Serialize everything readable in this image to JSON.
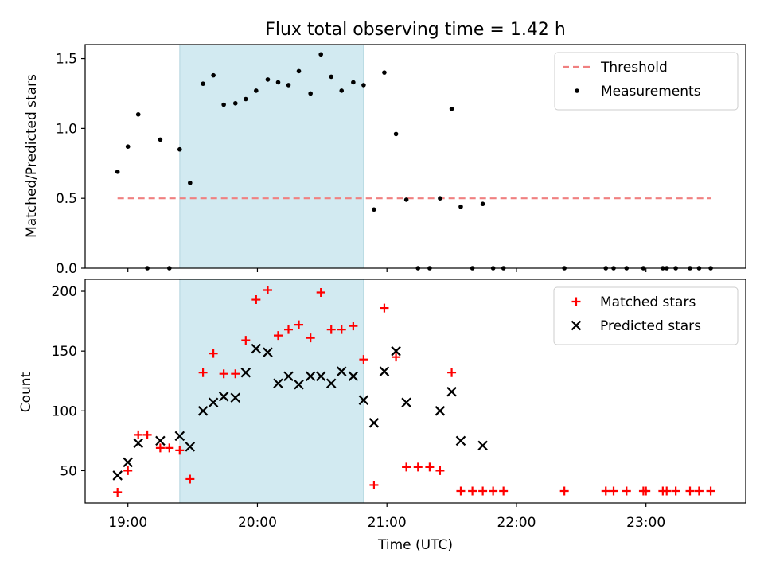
{
  "chart_data": [
    {
      "type": "scatter",
      "title": "Flux total observing time = 1.42 h",
      "ylabel": "Matched/Predicted stars",
      "ylim": [
        0,
        1.6
      ],
      "xlim": [
        18.67,
        23.77
      ],
      "yticks": [
        0,
        0.5,
        1.0,
        1.5
      ],
      "yticklabels": [
        "0.0",
        "0.5",
        "1.0",
        "1.5"
      ],
      "grid": false,
      "legend_position": "top-right",
      "shaded_interval": {
        "start": 19.4,
        "end": 20.82,
        "color": "#add8e6"
      },
      "threshold": {
        "name": "Threshold",
        "value": 0.5,
        "x_start": 18.92,
        "x_end": 23.5,
        "color": "#f08080",
        "style": "dashed"
      },
      "series": [
        {
          "name": "Measurements",
          "marker": "dot",
          "color": "#000000",
          "points": [
            [
              18.92,
              0.69
            ],
            [
              19.0,
              0.87
            ],
            [
              19.08,
              1.1
            ],
            [
              19.15,
              0.0
            ],
            [
              19.25,
              0.92
            ],
            [
              19.32,
              0.0
            ],
            [
              19.4,
              0.85
            ],
            [
              19.48,
              0.61
            ],
            [
              19.58,
              1.32
            ],
            [
              19.66,
              1.38
            ],
            [
              19.74,
              1.17
            ],
            [
              19.83,
              1.18
            ],
            [
              19.91,
              1.21
            ],
            [
              19.99,
              1.27
            ],
            [
              20.08,
              1.35
            ],
            [
              20.16,
              1.33
            ],
            [
              20.24,
              1.31
            ],
            [
              20.32,
              1.41
            ],
            [
              20.41,
              1.25
            ],
            [
              20.49,
              1.53
            ],
            [
              20.57,
              1.37
            ],
            [
              20.65,
              1.27
            ],
            [
              20.74,
              1.33
            ],
            [
              20.82,
              1.31
            ],
            [
              20.9,
              0.42
            ],
            [
              20.98,
              1.4
            ],
            [
              21.07,
              0.96
            ],
            [
              21.15,
              0.49
            ],
            [
              21.24,
              0.0
            ],
            [
              21.33,
              0.0
            ],
            [
              21.41,
              0.5
            ],
            [
              21.5,
              1.14
            ],
            [
              21.57,
              0.44
            ],
            [
              21.66,
              0.0
            ],
            [
              21.74,
              0.46
            ],
            [
              21.82,
              0.0
            ],
            [
              21.9,
              0.0
            ],
            [
              22.37,
              0.0
            ],
            [
              22.69,
              0.0
            ],
            [
              22.75,
              0.0
            ],
            [
              22.85,
              0.0
            ],
            [
              22.98,
              0.0
            ],
            [
              23.13,
              0.0
            ],
            [
              23.16,
              0.0
            ],
            [
              23.23,
              0.0
            ],
            [
              23.34,
              0.0
            ],
            [
              23.41,
              0.0
            ],
            [
              23.5,
              0.0
            ]
          ]
        }
      ]
    },
    {
      "type": "scatter",
      "xlabel": "Time (UTC)",
      "ylabel": "Count",
      "ylim": [
        23,
        210
      ],
      "xlim": [
        18.67,
        23.77
      ],
      "xticks": [
        19,
        20,
        21,
        22,
        23
      ],
      "xticklabels": [
        "19:00",
        "20:00",
        "21:00",
        "22:00",
        "23:00"
      ],
      "yticks": [
        50,
        100,
        150,
        200
      ],
      "yticklabels": [
        "50",
        "100",
        "150",
        "200"
      ],
      "grid": false,
      "legend_position": "top-right",
      "shaded_interval": {
        "start": 19.4,
        "end": 20.82,
        "color": "#add8e6"
      },
      "series": [
        {
          "name": "Matched stars",
          "marker": "plus",
          "color": "#ff0000",
          "points": [
            [
              18.92,
              32
            ],
            [
              19.0,
              50
            ],
            [
              19.08,
              80
            ],
            [
              19.15,
              80
            ],
            [
              19.25,
              69
            ],
            [
              19.32,
              69
            ],
            [
              19.4,
              67
            ],
            [
              19.48,
              43
            ],
            [
              19.58,
              132
            ],
            [
              19.66,
              148
            ],
            [
              19.74,
              131
            ],
            [
              19.83,
              131
            ],
            [
              19.91,
              159
            ],
            [
              19.99,
              193
            ],
            [
              20.08,
              201
            ],
            [
              20.16,
              163
            ],
            [
              20.24,
              168
            ],
            [
              20.32,
              172
            ],
            [
              20.41,
              161
            ],
            [
              20.49,
              199
            ],
            [
              20.57,
              168
            ],
            [
              20.65,
              168
            ],
            [
              20.74,
              171
            ],
            [
              20.82,
              143
            ],
            [
              20.9,
              38
            ],
            [
              20.98,
              186
            ],
            [
              21.07,
              145
            ],
            [
              21.15,
              53
            ],
            [
              21.24,
              53
            ],
            [
              21.33,
              53
            ],
            [
              21.41,
              50
            ],
            [
              21.5,
              132
            ],
            [
              21.57,
              33
            ],
            [
              21.66,
              33
            ],
            [
              21.74,
              33
            ],
            [
              21.82,
              33
            ],
            [
              21.9,
              33
            ],
            [
              22.37,
              33
            ],
            [
              22.69,
              33
            ],
            [
              22.75,
              33
            ],
            [
              22.85,
              33
            ],
            [
              22.98,
              33
            ],
            [
              23.0,
              33
            ],
            [
              23.13,
              33
            ],
            [
              23.16,
              33
            ],
            [
              23.23,
              33
            ],
            [
              23.34,
              33
            ],
            [
              23.41,
              33
            ],
            [
              23.5,
              33
            ]
          ]
        },
        {
          "name": "Predicted stars",
          "marker": "x",
          "color": "#000000",
          "points": [
            [
              18.92,
              46
            ],
            [
              19.0,
              57
            ],
            [
              19.08,
              73
            ],
            [
              19.25,
              75
            ],
            [
              19.4,
              79
            ],
            [
              19.48,
              70
            ],
            [
              19.58,
              100
            ],
            [
              19.66,
              107
            ],
            [
              19.74,
              112
            ],
            [
              19.83,
              111
            ],
            [
              19.91,
              132
            ],
            [
              19.99,
              152
            ],
            [
              20.08,
              149
            ],
            [
              20.16,
              123
            ],
            [
              20.24,
              129
            ],
            [
              20.32,
              122
            ],
            [
              20.41,
              129
            ],
            [
              20.49,
              129
            ],
            [
              20.57,
              123
            ],
            [
              20.65,
              133
            ],
            [
              20.74,
              129
            ],
            [
              20.82,
              109
            ],
            [
              20.9,
              90
            ],
            [
              20.98,
              133
            ],
            [
              21.07,
              150
            ],
            [
              21.15,
              107
            ],
            [
              21.41,
              100
            ],
            [
              21.5,
              116
            ],
            [
              21.57,
              75
            ],
            [
              21.74,
              71
            ]
          ]
        }
      ]
    }
  ]
}
